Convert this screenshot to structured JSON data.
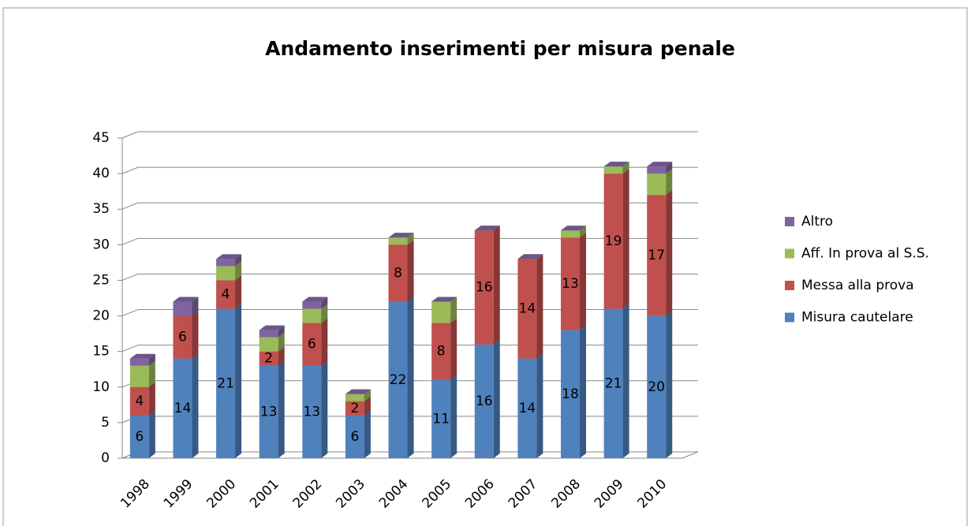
{
  "chart_data": {
    "type": "bar3d_stacked",
    "title": "Andamento inserimenti per misura penale",
    "categories": [
      "1998",
      "1999",
      "2000",
      "2001",
      "2002",
      "2003",
      "2004",
      "2005",
      "2006",
      "2007",
      "2008",
      "2009",
      "2010"
    ],
    "series": [
      {
        "name": "Misura cautelare",
        "color": "#4f81bd",
        "data_labels": true,
        "values": [
          6,
          14,
          21,
          13,
          13,
          6,
          22,
          11,
          16,
          14,
          18,
          21,
          20
        ]
      },
      {
        "name": "Messa alla prova",
        "color": "#c0504d",
        "data_labels": true,
        "values": [
          4,
          6,
          4,
          2,
          6,
          2,
          8,
          8,
          16,
          14,
          13,
          19,
          17
        ]
      },
      {
        "name": "Aff. In prova al S.S.",
        "color": "#9bbb59",
        "data_labels": false,
        "values": [
          3,
          0,
          2,
          2,
          2,
          1,
          1,
          3,
          0,
          0,
          1,
          1,
          3
        ]
      },
      {
        "name": "Altro",
        "color": "#8064a2",
        "data_labels": false,
        "values": [
          1,
          2,
          1,
          1,
          1,
          0,
          0,
          0,
          0,
          0,
          0,
          0,
          1
        ]
      }
    ],
    "ylim": [
      0,
      45
    ],
    "yticks": [
      0,
      5,
      10,
      15,
      20,
      25,
      30,
      35,
      40,
      45
    ],
    "grid": true,
    "legend": "right"
  }
}
